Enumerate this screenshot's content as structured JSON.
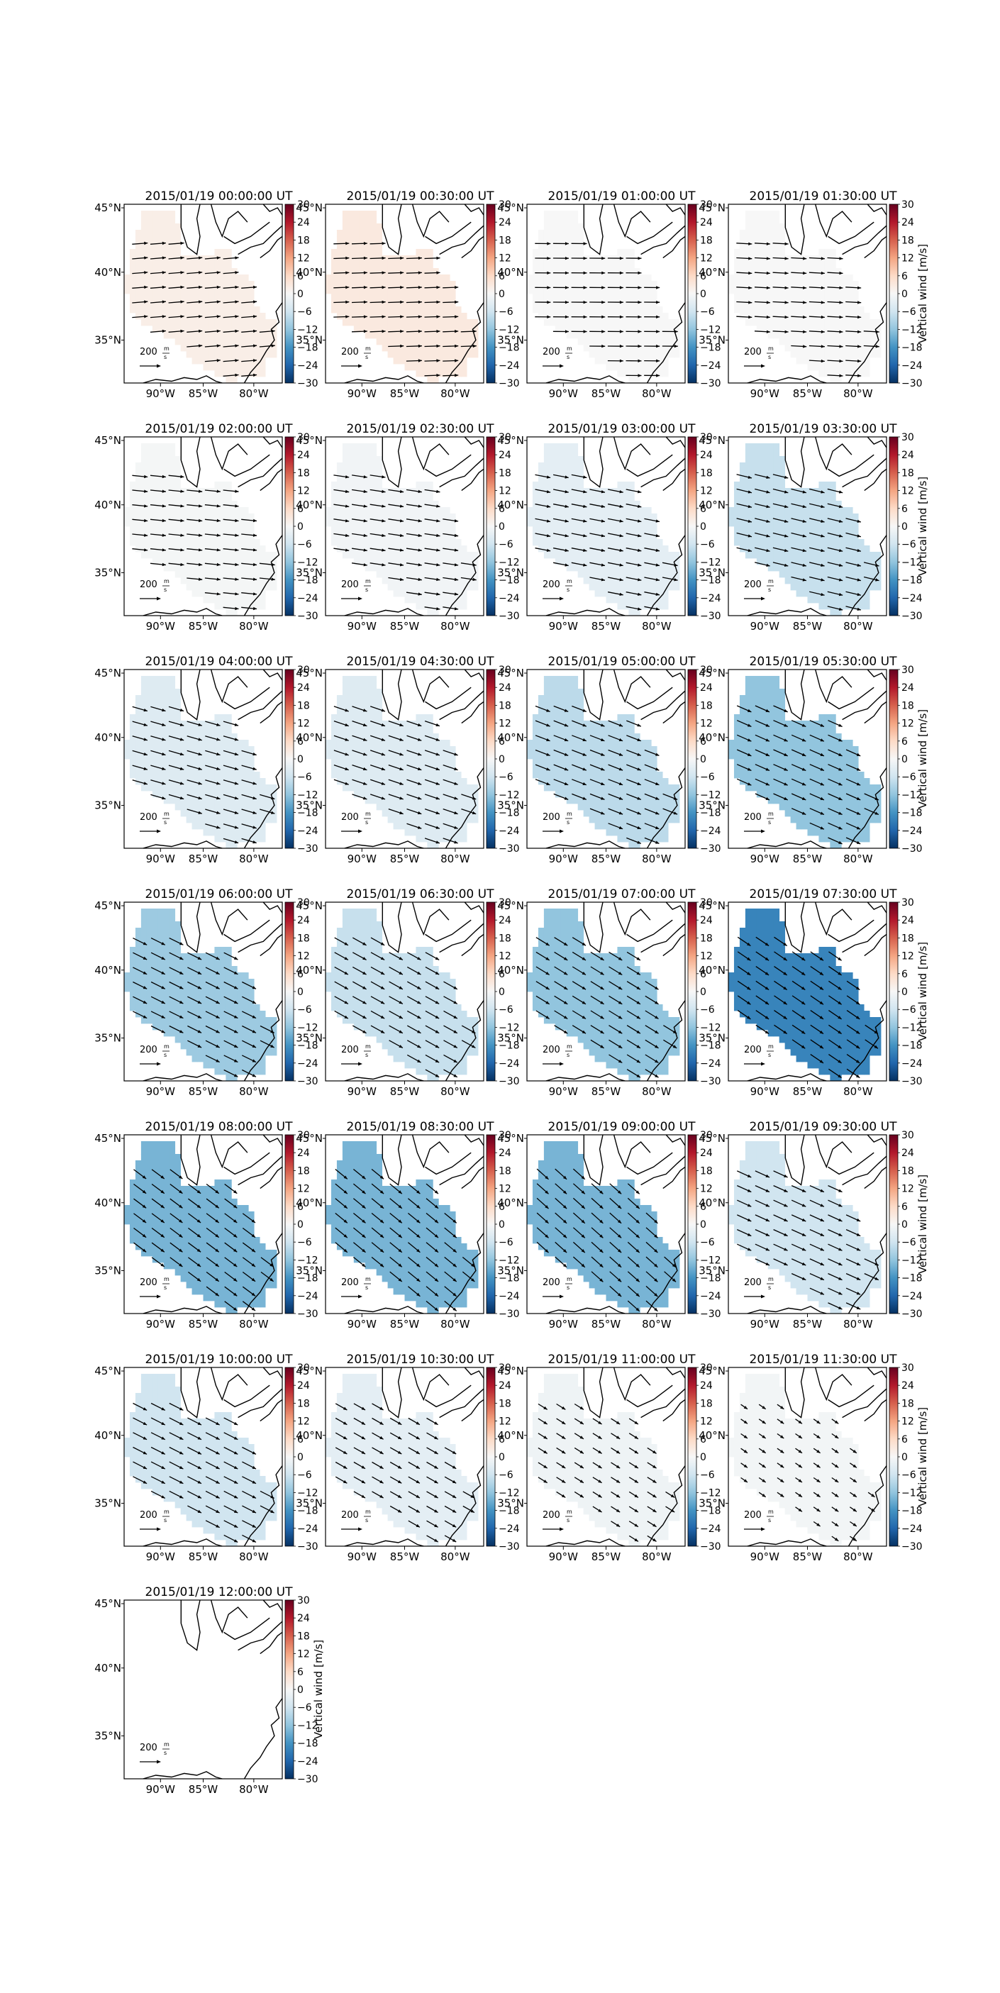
{
  "figure": {
    "colorbar_label": "Vertical wind [m/s]",
    "colorbar_ticks": [
      "30",
      "24",
      "18",
      "12",
      "6",
      "0",
      "−6",
      "−12",
      "−18",
      "−24",
      "−30"
    ],
    "colorbar_range": [
      -30,
      30
    ],
    "lon_ticks": [
      "90°W",
      "85°W",
      "80°W"
    ],
    "lat_ticks": [
      "45°N",
      "40°N",
      "35°N"
    ],
    "scale_label": "200",
    "scale_unit_num": "m",
    "scale_unit_den": "s",
    "colors": {
      "map_line": "#000000",
      "frame": "#000000"
    }
  },
  "chart_data": [
    {
      "type": "heatmap",
      "title": "2015/01/19 00:00:00 UT",
      "value": 2
    },
    {
      "type": "heatmap",
      "title": "2015/01/19 00:30:00 UT",
      "value": 3
    },
    {
      "type": "heatmap",
      "title": "2015/01/19 01:00:00 UT",
      "value": 0
    },
    {
      "type": "heatmap",
      "title": "2015/01/19 01:30:00 UT",
      "value": 0
    },
    {
      "type": "heatmap",
      "title": "2015/01/19 02:00:00 UT",
      "value": -0.5
    },
    {
      "type": "heatmap",
      "title": "2015/01/19 02:30:00 UT",
      "value": -1
    },
    {
      "type": "heatmap",
      "title": "2015/01/19 03:00:00 UT",
      "value": -3
    },
    {
      "type": "heatmap",
      "title": "2015/01/19 03:30:00 UT",
      "value": -7
    },
    {
      "type": "heatmap",
      "title": "2015/01/19 04:00:00 UT",
      "value": -4
    },
    {
      "type": "heatmap",
      "title": "2015/01/19 04:30:00 UT",
      "value": -4
    },
    {
      "type": "heatmap",
      "title": "2015/01/19 05:00:00 UT",
      "value": -8
    },
    {
      "type": "heatmap",
      "title": "2015/01/19 05:30:00 UT",
      "value": -12
    },
    {
      "type": "heatmap",
      "title": "2015/01/19 06:00:00 UT",
      "value": -11
    },
    {
      "type": "heatmap",
      "title": "2015/01/19 06:30:00 UT",
      "value": -7
    },
    {
      "type": "heatmap",
      "title": "2015/01/19 07:00:00 UT",
      "value": -12
    },
    {
      "type": "heatmap",
      "title": "2015/01/19 07:30:00 UT",
      "value": -20
    },
    {
      "type": "heatmap",
      "title": "2015/01/19 08:00:00 UT",
      "value": -14
    },
    {
      "type": "heatmap",
      "title": "2015/01/19 08:30:00 UT",
      "value": -14
    },
    {
      "type": "heatmap",
      "title": "2015/01/19 09:00:00 UT",
      "value": -14
    },
    {
      "type": "heatmap",
      "title": "2015/01/19 09:30:00 UT",
      "value": -6
    },
    {
      "type": "heatmap",
      "title": "2015/01/19 10:00:00 UT",
      "value": -6
    },
    {
      "type": "heatmap",
      "title": "2015/01/19 10:30:00 UT",
      "value": -3
    },
    {
      "type": "heatmap",
      "title": "2015/01/19 11:00:00 UT",
      "value": -1.5
    },
    {
      "type": "heatmap",
      "title": "2015/01/19 11:30:00 UT",
      "value": -0.8
    },
    {
      "type": "heatmap",
      "title": "2015/01/19 12:00:00 UT",
      "value": null
    }
  ]
}
